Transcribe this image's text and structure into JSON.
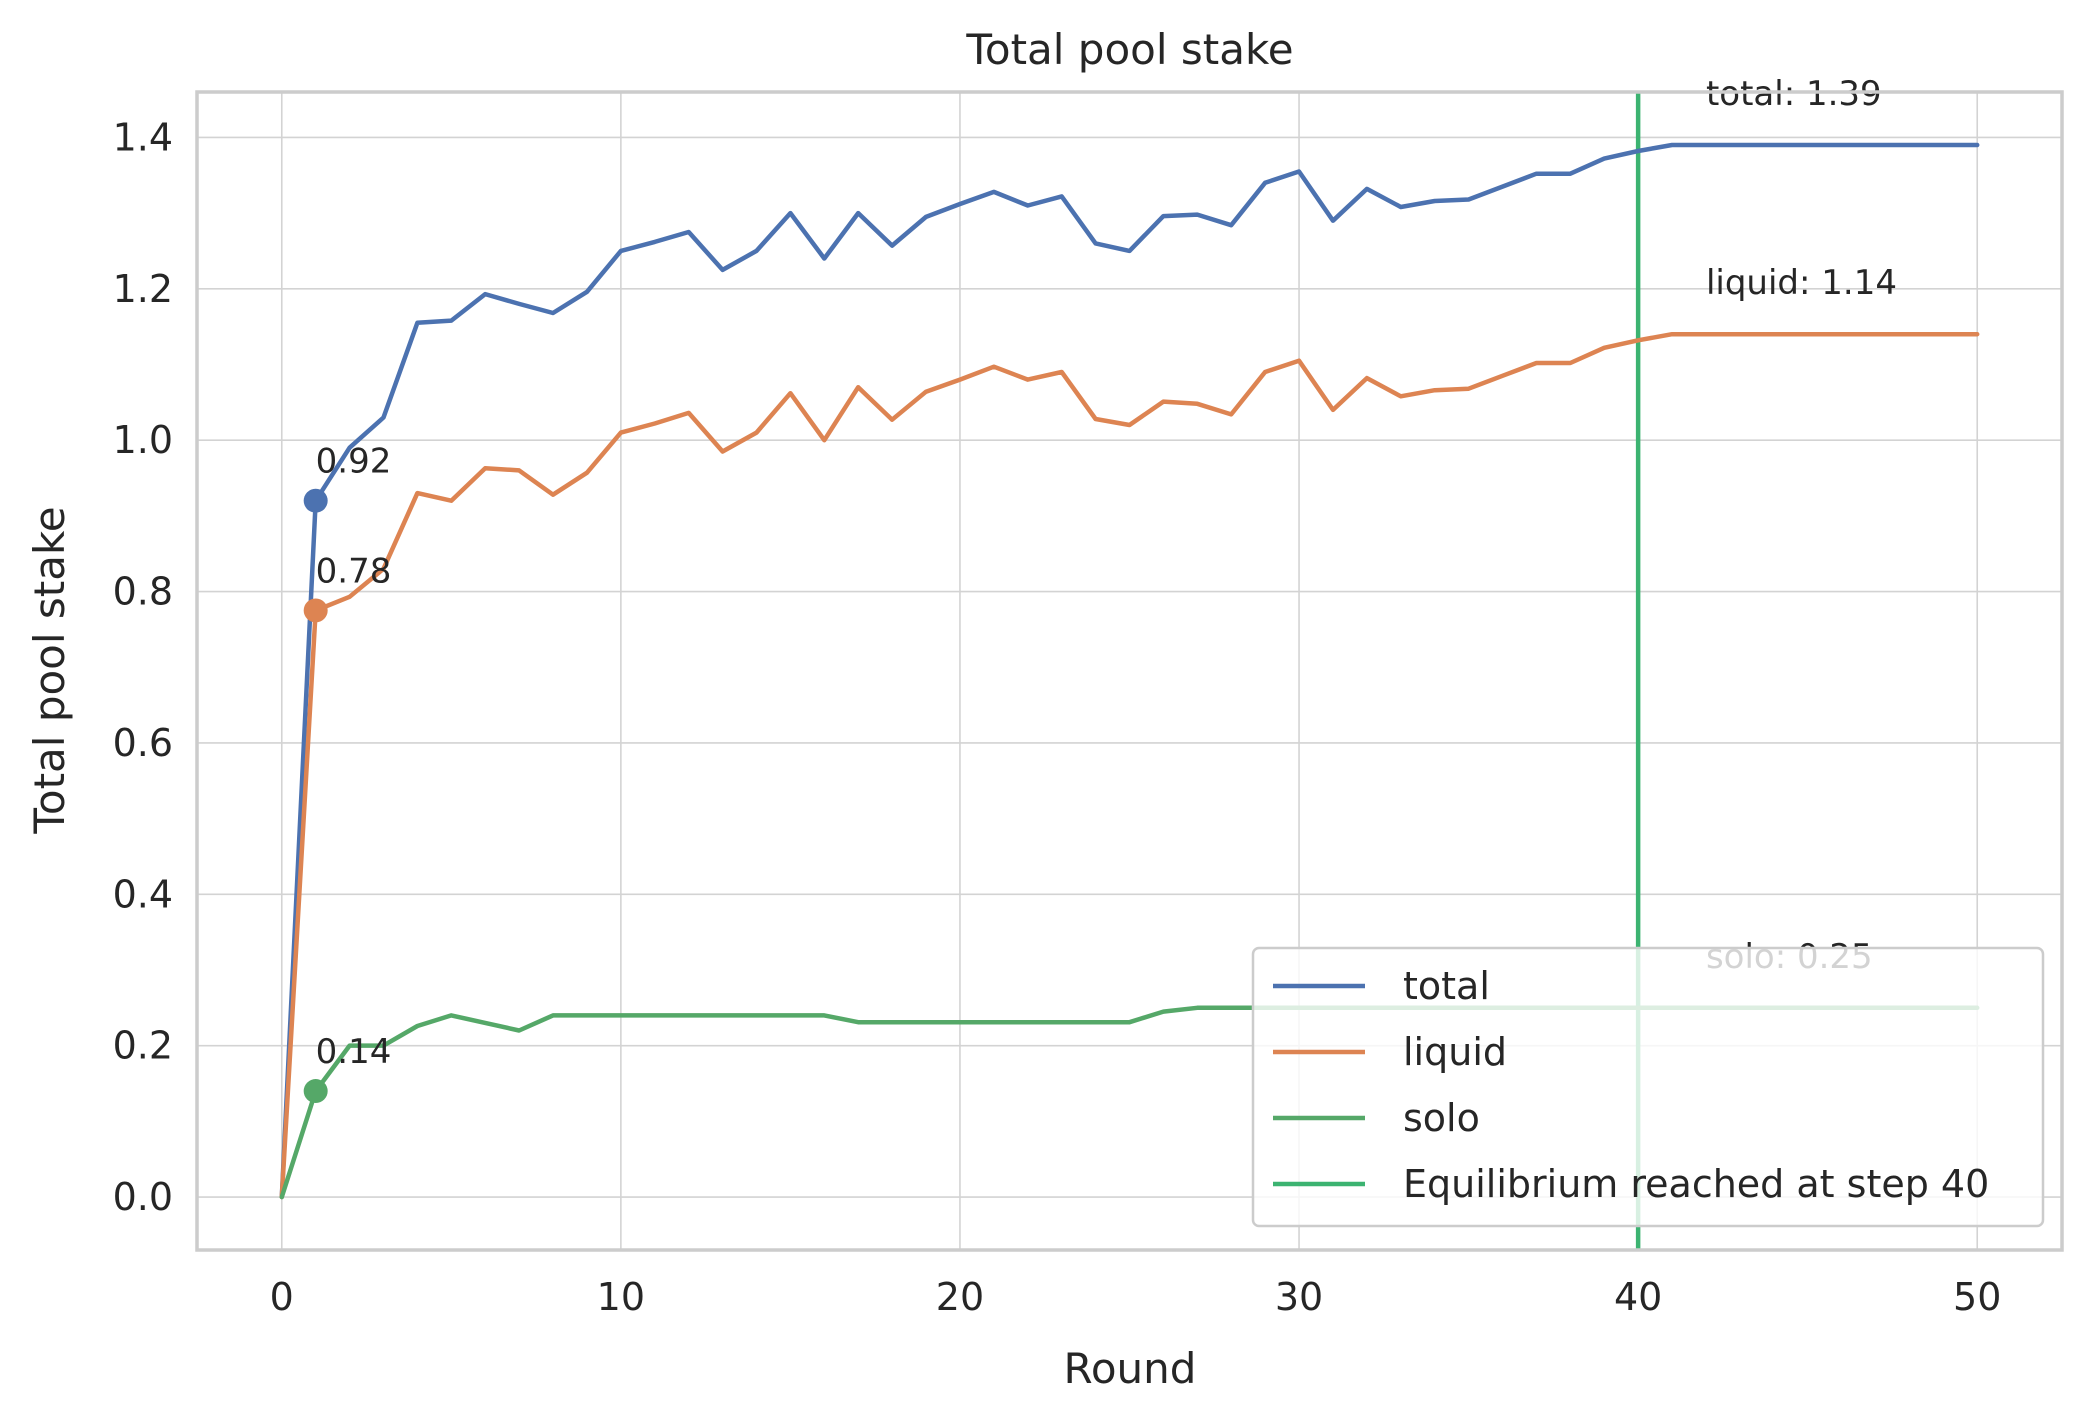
{
  "chart_data": {
    "type": "line",
    "title": "Total pool stake",
    "xlabel": "Round",
    "ylabel": "Total pool stake",
    "xlim": [
      -2.5,
      52.5
    ],
    "ylim": [
      -0.07,
      1.46
    ],
    "x_ticks": [
      0,
      10,
      20,
      30,
      40,
      50
    ],
    "x_tick_labels": [
      "0",
      "10",
      "20",
      "30",
      "40",
      "50"
    ],
    "y_ticks": [
      0.0,
      0.2,
      0.4,
      0.6,
      0.8,
      1.0,
      1.2,
      1.4
    ],
    "y_tick_labels": [
      "0.0",
      "0.2",
      "0.4",
      "0.6",
      "0.8",
      "1.0",
      "1.2",
      "1.4"
    ],
    "grid": true,
    "legend_position": "lower right",
    "x": [
      0,
      1,
      2,
      3,
      4,
      5,
      6,
      7,
      8,
      9,
      10,
      11,
      12,
      13,
      14,
      15,
      16,
      17,
      18,
      19,
      20,
      21,
      22,
      23,
      24,
      25,
      26,
      27,
      28,
      29,
      30,
      31,
      32,
      33,
      34,
      35,
      36,
      37,
      38,
      39,
      40,
      41,
      42,
      43,
      44,
      45,
      46,
      47,
      48,
      49,
      50
    ],
    "series": [
      {
        "name": "total",
        "color": "#4c72b0",
        "values": [
          0.0,
          0.92,
          0.99,
          1.03,
          1.155,
          1.158,
          1.193,
          1.18,
          1.168,
          1.196,
          1.25,
          1.262,
          1.275,
          1.225,
          1.25,
          1.3,
          1.24,
          1.3,
          1.257,
          1.295,
          1.312,
          1.328,
          1.31,
          1.322,
          1.26,
          1.25,
          1.296,
          1.298,
          1.284,
          1.34,
          1.355,
          1.29,
          1.332,
          1.308,
          1.316,
          1.318,
          1.335,
          1.352,
          1.352,
          1.372,
          1.382,
          1.39,
          1.39,
          1.39,
          1.39,
          1.39,
          1.39,
          1.39,
          1.39,
          1.39,
          1.39
        ]
      },
      {
        "name": "liquid",
        "color": "#dd8452",
        "values": [
          0.0,
          0.775,
          0.793,
          0.83,
          0.93,
          0.92,
          0.963,
          0.96,
          0.928,
          0.957,
          1.01,
          1.022,
          1.036,
          0.985,
          1.01,
          1.062,
          1.0,
          1.07,
          1.027,
          1.064,
          1.08,
          1.097,
          1.08,
          1.09,
          1.028,
          1.02,
          1.051,
          1.048,
          1.034,
          1.09,
          1.105,
          1.04,
          1.082,
          1.058,
          1.066,
          1.068,
          1.085,
          1.102,
          1.102,
          1.122,
          1.132,
          1.14,
          1.14,
          1.14,
          1.14,
          1.14,
          1.14,
          1.14,
          1.14,
          1.14,
          1.14
        ]
      },
      {
        "name": "solo",
        "color": "#55a868",
        "values": [
          0.0,
          0.14,
          0.2,
          0.2,
          0.226,
          0.24,
          0.23,
          0.22,
          0.24,
          0.24,
          0.24,
          0.24,
          0.24,
          0.24,
          0.24,
          0.24,
          0.24,
          0.231,
          0.231,
          0.231,
          0.231,
          0.231,
          0.231,
          0.231,
          0.231,
          0.231,
          0.245,
          0.25,
          0.25,
          0.25,
          0.25,
          0.25,
          0.25,
          0.25,
          0.25,
          0.25,
          0.25,
          0.25,
          0.25,
          0.25,
          0.25,
          0.25,
          0.25,
          0.25,
          0.25,
          0.25,
          0.25,
          0.25,
          0.25,
          0.25,
          0.25
        ]
      }
    ],
    "vline": {
      "x": 40,
      "label": "Equilibrium reached at step 40",
      "color": "#3cb371"
    },
    "point_annotations": [
      {
        "x": 1,
        "y": 0.92,
        "text": "0.92",
        "color": "#4c72b0"
      },
      {
        "x": 1,
        "y": 0.775,
        "text": "0.78",
        "color": "#dd8452"
      },
      {
        "x": 1,
        "y": 0.14,
        "text": "0.14",
        "color": "#55a868"
      }
    ],
    "end_annotations": [
      {
        "x": 42,
        "y": 1.39,
        "text": "total: 1.39"
      },
      {
        "x": 42,
        "y": 1.14,
        "text": "liquid: 1.14"
      },
      {
        "x": 42,
        "y": 0.25,
        "text": "solo: 0.25"
      }
    ]
  }
}
